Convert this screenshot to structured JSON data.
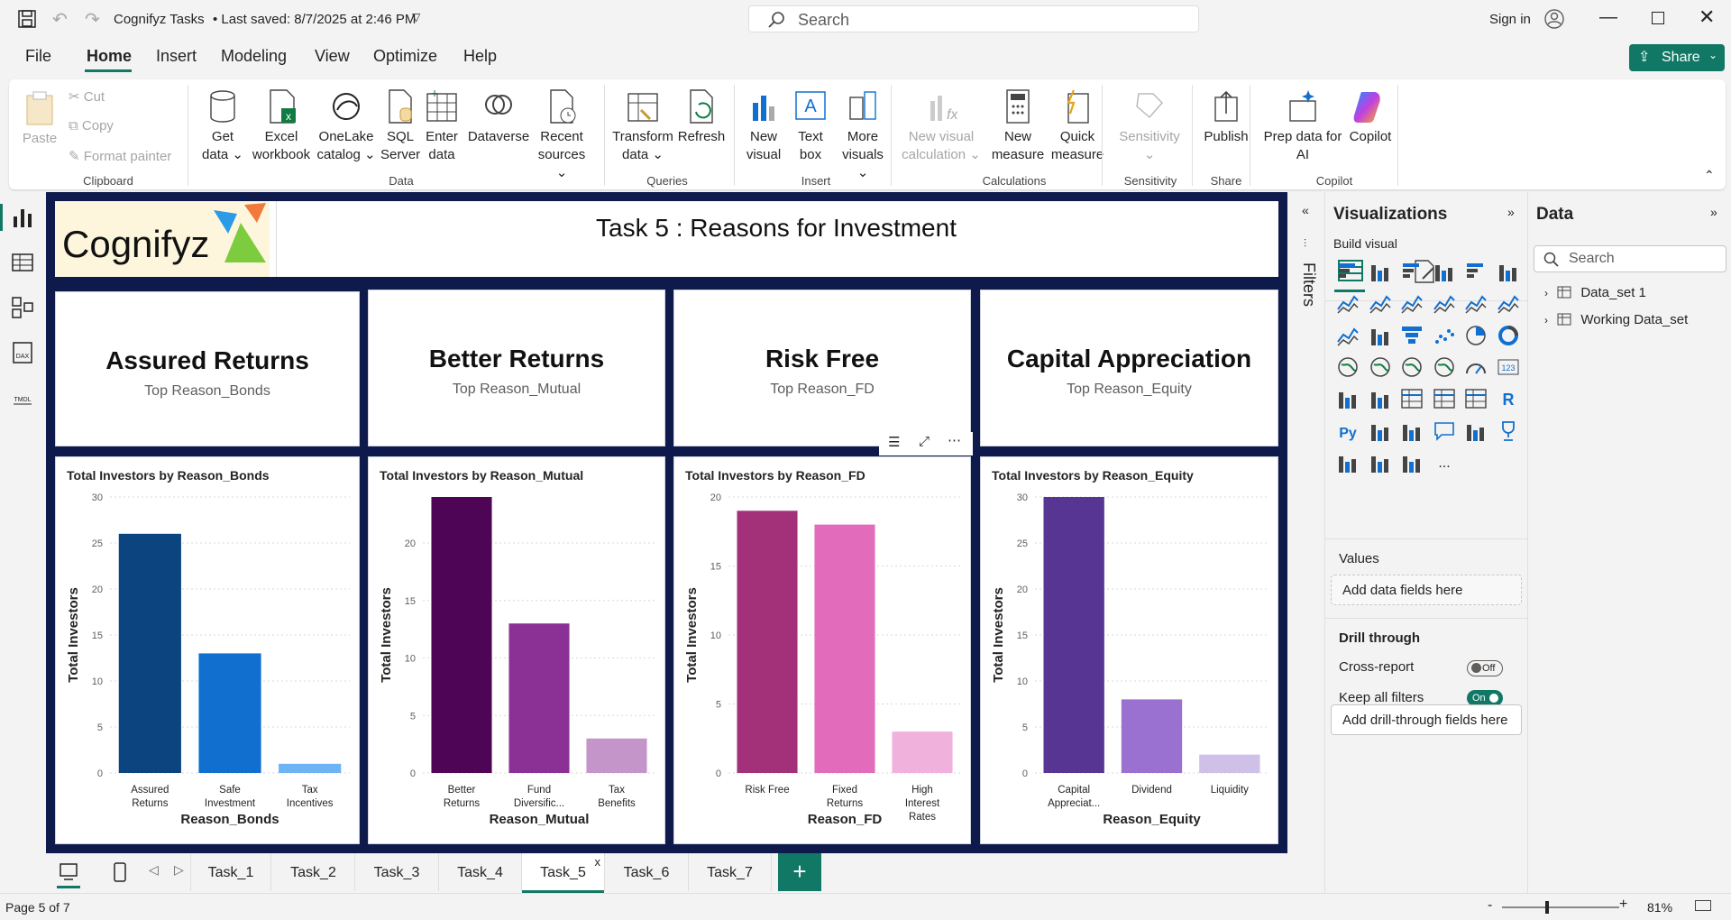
{
  "titlebar": {
    "app_title": "Cognifyz Tasks",
    "save_status": "• Last saved: 8/7/2025 at 2:46 PM",
    "search_placeholder": "Search",
    "sign_in": "Sign in"
  },
  "menu": {
    "file": "File",
    "home": "Home",
    "insert": "Insert",
    "modeling": "Modeling",
    "view": "View",
    "optimize": "Optimize",
    "help": "Help",
    "share": "Share"
  },
  "ribbon": {
    "clipboard": {
      "paste": "Paste",
      "cut": "Cut",
      "copy": "Copy",
      "format_painter": "Format painter",
      "group": "Clipboard"
    },
    "data": {
      "get_data_1": "Get",
      "get_data_2": "data",
      "excel_1": "Excel",
      "excel_2": "workbook",
      "onelake_1": "OneLake",
      "onelake_2": "catalog",
      "sql_1": "SQL",
      "sql_2": "Server",
      "enter_1": "Enter",
      "enter_2": "data",
      "dataverse": "Dataverse",
      "recent_1": "Recent",
      "recent_2": "sources",
      "group": "Data"
    },
    "queries": {
      "transform_1": "Transform",
      "transform_2": "data",
      "refresh": "Refresh",
      "group": "Queries"
    },
    "insert": {
      "new_visual_1": "New",
      "new_visual_2": "visual",
      "text_box_1": "Text",
      "text_box_2": "box",
      "more_visuals_1": "More",
      "more_visuals_2": "visuals",
      "group": "Insert"
    },
    "calculations": {
      "new_calc_1": "New visual",
      "new_calc_2": "calculation",
      "new_measure_1": "New",
      "new_measure_2": "measure",
      "quick_measure_1": "Quick",
      "quick_measure_2": "measure",
      "group": "Calculations"
    },
    "sensitivity": {
      "label": "Sensitivity",
      "group": "Sensitivity"
    },
    "share": {
      "publish": "Publish",
      "group": "Share"
    },
    "copilot": {
      "prep_1": "Prep data for",
      "prep_2": "AI",
      "copilot": "Copilot",
      "group": "Copilot"
    }
  },
  "report": {
    "header": {
      "logo_text": "Cognifyz",
      "title": "Task 5 :  Reasons for Investment"
    },
    "kpis": [
      {
        "title": "Assured Returns",
        "subtitle": "Top Reason_Bonds"
      },
      {
        "title": "Better Returns",
        "subtitle": "Top Reason_Mutual"
      },
      {
        "title": "Risk Free",
        "subtitle": "Top Reason_FD"
      },
      {
        "title": "Capital Appreciation",
        "subtitle": "Top Reason_Equity"
      }
    ]
  },
  "chart_data": [
    {
      "type": "bar",
      "title": "Total Investors by Reason_Bonds",
      "xlabel": "Reason_Bonds",
      "ylabel": "Total Investors",
      "categories": [
        [
          "Assured",
          "Returns"
        ],
        [
          "Safe",
          "Investment"
        ],
        [
          "Tax",
          "Incentives"
        ]
      ],
      "values": [
        26,
        13,
        1
      ],
      "ylim": [
        0,
        30
      ],
      "ticks": [
        0,
        5,
        10,
        15,
        20,
        25,
        30
      ],
      "colors": [
        "#0b447e",
        "#1170cf",
        "#6eb3f3"
      ]
    },
    {
      "type": "bar",
      "title": "Total Investors by Reason_Mutual",
      "xlabel": "Reason_Mutual",
      "ylabel": "Total Investors",
      "categories": [
        [
          "Better",
          "Returns"
        ],
        [
          "Fund",
          "Diversific..."
        ],
        [
          "Tax",
          "Benefits"
        ]
      ],
      "values": [
        24,
        13,
        3
      ],
      "ylim": [
        0,
        24
      ],
      "ticks": [
        0,
        5,
        10,
        15,
        20
      ],
      "colors": [
        "#4f0556",
        "#8b3196",
        "#c495c9"
      ]
    },
    {
      "type": "bar",
      "title": "Total Investors by Reason_FD",
      "xlabel": "Reason_FD",
      "ylabel": "Total Investors",
      "categories": [
        [
          "Risk Free"
        ],
        [
          "Fixed",
          "Returns"
        ],
        [
          "High",
          "Interest",
          "Rates"
        ]
      ],
      "values": [
        19,
        18,
        3
      ],
      "ylim": [
        0,
        20
      ],
      "ticks": [
        0,
        5,
        10,
        15,
        20
      ],
      "colors": [
        "#a3317a",
        "#e36bbb",
        "#f0b2dc"
      ]
    },
    {
      "type": "bar",
      "title": "Total Investors by Reason_Equity",
      "xlabel": "Reason_Equity",
      "ylabel": "Total Investors",
      "categories": [
        [
          "Capital",
          "Appreciat..."
        ],
        [
          "Dividend"
        ],
        [
          "Liquidity"
        ]
      ],
      "values": [
        30,
        8,
        2
      ],
      "ylim": [
        0,
        30
      ],
      "ticks": [
        0,
        5,
        10,
        15,
        20,
        25,
        30
      ],
      "colors": [
        "#573592",
        "#9a71d0",
        "#cfc0e8"
      ]
    }
  ],
  "tabs": [
    "Task_1",
    "Task_2",
    "Task_3",
    "Task_4",
    "Task_5",
    "Task_6",
    "Task_7"
  ],
  "active_tab": "Task_5",
  "status": {
    "page": "Page 5 of 7",
    "zoom": "81%"
  },
  "filters": {
    "label": "Filters"
  },
  "viz_pane": {
    "title": "Visualizations",
    "build_visual": "Build visual",
    "values_label": "Values",
    "values_placeholder": "Add data fields here",
    "drill_through": "Drill through",
    "cross_report": "Cross-report",
    "cross_report_state": "Off",
    "keep_filters": "Keep all filters",
    "keep_filters_state": "On",
    "drill_placeholder": "Add drill-through fields here",
    "r_label": "R",
    "py_label": "Py",
    "num_label": "123",
    "more": "..."
  },
  "data_pane": {
    "title": "Data",
    "search_placeholder": "Search",
    "tables": [
      "Data_set 1",
      "Working Data_set"
    ]
  },
  "colors": {
    "accent": "#117865",
    "canvas_bg": "#0e1a4c"
  }
}
